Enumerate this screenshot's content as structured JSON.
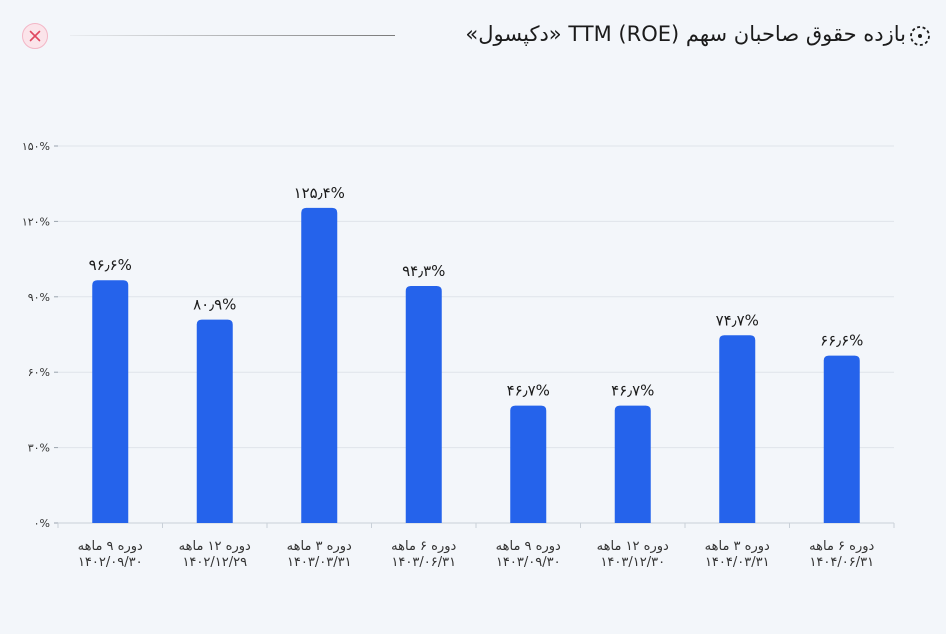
{
  "header": {
    "title": "بازده حقوق صاحبان سهم TTM (ROE) «دکپسول»",
    "close_icon": "close-icon",
    "title_icon": "dashed-circle-icon"
  },
  "colors": {
    "bar": "#2563eb",
    "background": "#f3f6fa",
    "grid": "#dfe4ea",
    "close": "#e0475f"
  },
  "chart_data": {
    "type": "bar",
    "categories": [
      [
        "دوره ۹ ماهه",
        "۱۴۰۲/۰۹/۳۰"
      ],
      [
        "دوره ۱۲ ماهه",
        "۱۴۰۲/۱۲/۲۹"
      ],
      [
        "دوره ۳ ماهه",
        "۱۴۰۳/۰۳/۳۱"
      ],
      [
        "دوره ۶ ماهه",
        "۱۴۰۳/۰۶/۳۱"
      ],
      [
        "دوره ۹ ماهه",
        "۱۴۰۳/۰۹/۳۰"
      ],
      [
        "دوره ۱۲ ماهه",
        "۱۴۰۳/۱۲/۳۰"
      ],
      [
        "دوره ۳ ماهه",
        "۱۴۰۴/۰۳/۳۱"
      ],
      [
        "دوره ۶ ماهه",
        "۱۴۰۴/۰۶/۳۱"
      ]
    ],
    "values": [
      96.6,
      80.9,
      125.4,
      94.3,
      46.7,
      46.7,
      74.7,
      66.6
    ],
    "value_labels": [
      "۹۶٫۶%",
      "۸۰٫۹%",
      "۱۲۵٫۴%",
      "۹۴٫۳%",
      "۴۶٫۷%",
      "۴۶٫۷%",
      "۷۴٫۷%",
      "۶۶٫۶%"
    ],
    "ylim": [
      0,
      150
    ],
    "yticks": [
      0,
      30,
      60,
      90,
      120,
      150
    ],
    "ytick_labels": [
      "۰%",
      "۳۰%",
      "۶۰%",
      "۹۰%",
      "۱۲۰%",
      "۱۵۰%"
    ],
    "grid": true,
    "legend": "none"
  }
}
